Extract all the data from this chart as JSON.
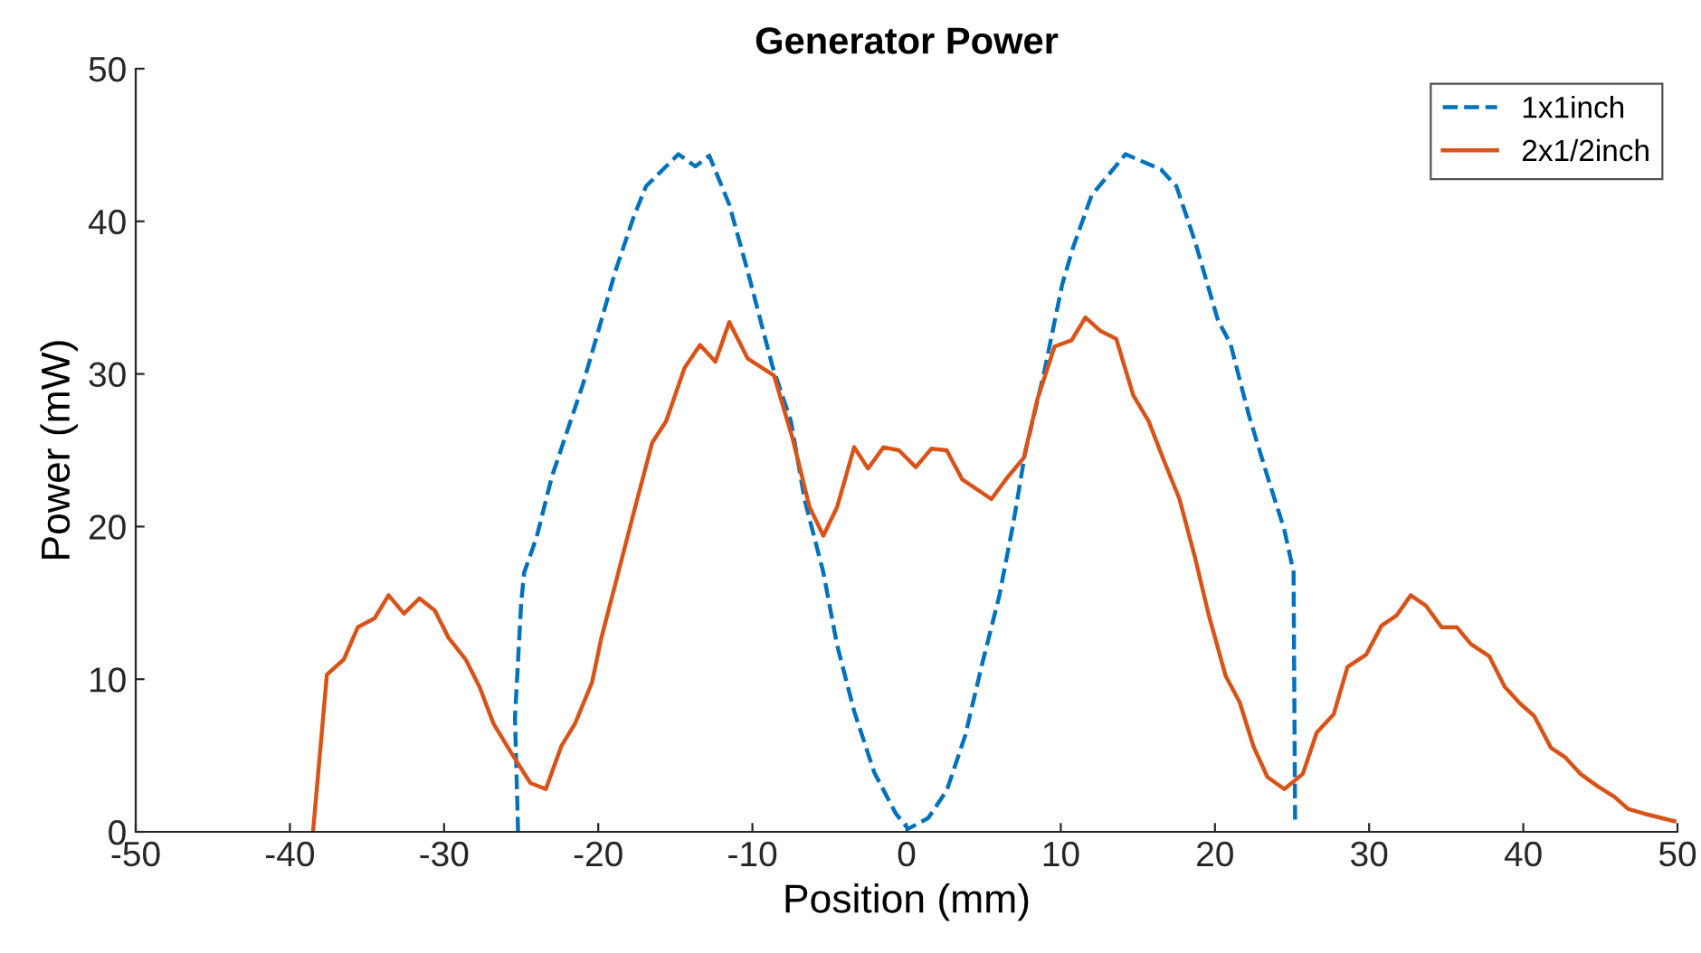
{
  "chart_data": {
    "type": "line",
    "title": "Generator Power",
    "xlabel": "Position (mm)",
    "ylabel": "Power (mW)",
    "xlim": [
      -50,
      50
    ],
    "xticks": [
      -50,
      -40,
      -30,
      -20,
      -10,
      0,
      10,
      20,
      30,
      40,
      50
    ],
    "ylim": [
      0,
      50
    ],
    "yticks": [
      0,
      10,
      20,
      30,
      40,
      50
    ],
    "grid": false,
    "legend": "top right",
    "marker": "none",
    "series": [
      {
        "name": "1x1inch",
        "color": "#0072bd",
        "line_style": "dashed",
        "x": [
          -25.2,
          -25.4,
          -25.0,
          -24.8,
          -24.0,
          -23.0,
          -22.0,
          -21.0,
          -20.0,
          -18.9,
          -17.7,
          -16.9,
          -14.8,
          -13.7,
          -12.8,
          -11.5,
          -10.3,
          -8.7,
          -7.5,
          -6.6,
          -5.4,
          -4.5,
          -3.4,
          -2.1,
          -0.7,
          0.1,
          1.4,
          2.6,
          3.8,
          4.9,
          6.0,
          6.9,
          7.7,
          8.9,
          10.1,
          10.8,
          12.0,
          14.2,
          16.5,
          17.5,
          18.7,
          20.2,
          21.0,
          22.2,
          23.4,
          24.5,
          25.1,
          25.2
        ],
        "values": [
          0,
          7.5,
          15,
          17,
          19.3,
          23.3,
          26.3,
          29.3,
          32.8,
          36.7,
          40.3,
          42.3,
          44.4,
          43.6,
          44.3,
          41.1,
          36.7,
          30.5,
          26.9,
          21.7,
          17,
          12.2,
          7.9,
          3.9,
          1.2,
          0.2,
          0.9,
          2.7,
          6.3,
          11,
          15.4,
          20.1,
          24.9,
          30,
          35.9,
          38.3,
          41.7,
          44.4,
          43.4,
          42.3,
          38.7,
          33.5,
          32,
          27.3,
          23.3,
          19.8,
          17,
          0.4
        ]
      },
      {
        "name": "2x1/2inch",
        "color": "#d95319",
        "line_style": "solid",
        "x": [
          -38.5,
          -37.6,
          -36.5,
          -35.6,
          -34.5,
          -33.6,
          -32.6,
          -31.6,
          -30.6,
          -29.7,
          -28.6,
          -27.7,
          -26.8,
          -25.6,
          -24.4,
          -23.4,
          -22.4,
          -21.5,
          -20.4,
          -19.8,
          -18.9,
          -17.6,
          -16.5,
          -15.6,
          -14.4,
          -13.4,
          -12.4,
          -11.5,
          -10.3,
          -8.6,
          -7.4,
          -6.3,
          -5.4,
          -4.5,
          -3.4,
          -2.5,
          -1.5,
          -0.5,
          0.6,
          1.6,
          2.6,
          3.6,
          5.5,
          6.6,
          7.6,
          8.5,
          9.6,
          10.7,
          11.6,
          12.6,
          13.6,
          14.7,
          15.7,
          16.7,
          17.7,
          18.7,
          19.6,
          20.7,
          21.6,
          22.5,
          23.4,
          24.5,
          25.7,
          26.6,
          27.7,
          28.6,
          29.8,
          30.8,
          31.8,
          32.7,
          33.7,
          34.7,
          35.7,
          36.6,
          37.8,
          38.8,
          39.8,
          40.7,
          41.8,
          42.7,
          43.7,
          44.8,
          45.9,
          46.8,
          47.8,
          49.8
        ],
        "values": [
          0,
          10.3,
          11.3,
          13.4,
          14,
          15.5,
          14.3,
          15.3,
          14.5,
          12.7,
          11.3,
          9.5,
          7.1,
          5.1,
          3.2,
          2.8,
          5.6,
          7.1,
          9.8,
          12.7,
          16.2,
          21.3,
          25.5,
          26.9,
          30.4,
          31.9,
          30.8,
          33.4,
          31.0,
          29.9,
          25.8,
          21.3,
          19.4,
          21.3,
          25.2,
          23.8,
          25.2,
          25.0,
          23.9,
          25.1,
          25.0,
          23.1,
          21.8,
          23.3,
          24.5,
          28.4,
          31.8,
          32.2,
          33.7,
          32.8,
          32.3,
          28.6,
          26.9,
          24.3,
          21.8,
          18.0,
          14.2,
          10.2,
          8.5,
          5.6,
          3.6,
          2.8,
          3.8,
          6.5,
          7.7,
          10.8,
          11.6,
          13.5,
          14.2,
          15.5,
          14.8,
          13.4,
          13.4,
          12.3,
          11.5,
          9.5,
          8.4,
          7.6,
          5.5,
          4.9,
          3.8,
          3.0,
          2.3,
          1.5,
          1.2,
          0.7
        ]
      }
    ]
  }
}
